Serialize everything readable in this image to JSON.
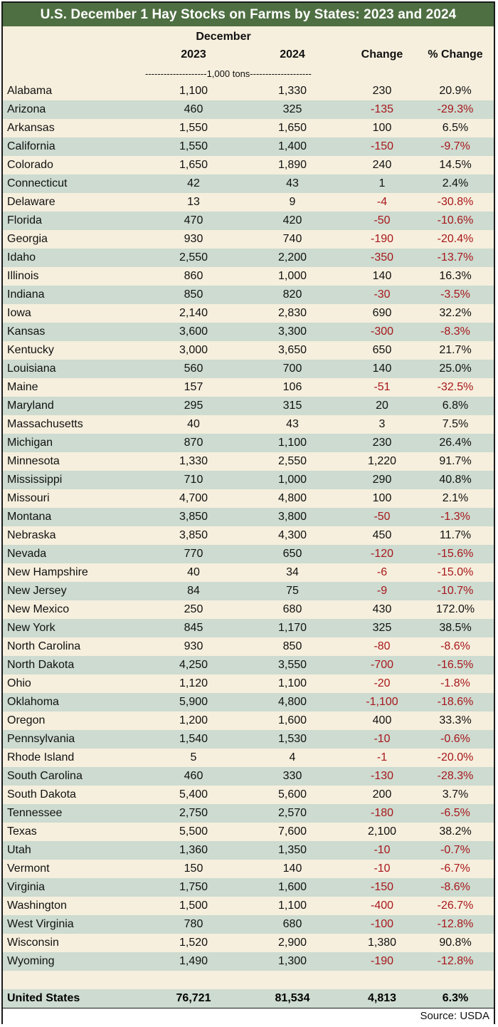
{
  "title": "U.S. December 1 Hay Stocks on Farms by States: 2023 and 2024",
  "header": {
    "group_label": "December",
    "columns": [
      "2023",
      "2024",
      "Change",
      "% Change"
    ],
    "units": "--------------------1,000 tons--------------------"
  },
  "rows": [
    {
      "state": "Alabama",
      "y2023": "1,100",
      "y2024": "1,330",
      "change": "230",
      "pct": "20.9%"
    },
    {
      "state": "Arizona",
      "y2023": "460",
      "y2024": "325",
      "change": "-135",
      "pct": "-29.3%"
    },
    {
      "state": "Arkansas",
      "y2023": "1,550",
      "y2024": "1,650",
      "change": "100",
      "pct": "6.5%"
    },
    {
      "state": "California",
      "y2023": "1,550",
      "y2024": "1,400",
      "change": "-150",
      "pct": "-9.7%"
    },
    {
      "state": "Colorado",
      "y2023": "1,650",
      "y2024": "1,890",
      "change": "240",
      "pct": "14.5%"
    },
    {
      "state": "Connecticut",
      "y2023": "42",
      "y2024": "43",
      "change": "1",
      "pct": "2.4%"
    },
    {
      "state": "Delaware",
      "y2023": "13",
      "y2024": "9",
      "change": "-4",
      "pct": "-30.8%"
    },
    {
      "state": "Florida",
      "y2023": "470",
      "y2024": "420",
      "change": "-50",
      "pct": "-10.6%"
    },
    {
      "state": "Georgia",
      "y2023": "930",
      "y2024": "740",
      "change": "-190",
      "pct": "-20.4%"
    },
    {
      "state": "Idaho",
      "y2023": "2,550",
      "y2024": "2,200",
      "change": "-350",
      "pct": "-13.7%"
    },
    {
      "state": "Illinois",
      "y2023": "860",
      "y2024": "1,000",
      "change": "140",
      "pct": "16.3%"
    },
    {
      "state": "Indiana",
      "y2023": "850",
      "y2024": "820",
      "change": "-30",
      "pct": "-3.5%"
    },
    {
      "state": "Iowa",
      "y2023": "2,140",
      "y2024": "2,830",
      "change": "690",
      "pct": "32.2%"
    },
    {
      "state": "Kansas",
      "y2023": "3,600",
      "y2024": "3,300",
      "change": "-300",
      "pct": "-8.3%"
    },
    {
      "state": "Kentucky",
      "y2023": "3,000",
      "y2024": "3,650",
      "change": "650",
      "pct": "21.7%"
    },
    {
      "state": "Louisiana",
      "y2023": "560",
      "y2024": "700",
      "change": "140",
      "pct": "25.0%"
    },
    {
      "state": "Maine",
      "y2023": "157",
      "y2024": "106",
      "change": "-51",
      "pct": "-32.5%"
    },
    {
      "state": "Maryland",
      "y2023": "295",
      "y2024": "315",
      "change": "20",
      "pct": "6.8%"
    },
    {
      "state": "Massachusetts",
      "y2023": "40",
      "y2024": "43",
      "change": "3",
      "pct": "7.5%"
    },
    {
      "state": "Michigan",
      "y2023": "870",
      "y2024": "1,100",
      "change": "230",
      "pct": "26.4%"
    },
    {
      "state": "Minnesota",
      "y2023": "1,330",
      "y2024": "2,550",
      "change": "1,220",
      "pct": "91.7%"
    },
    {
      "state": "Mississippi",
      "y2023": "710",
      "y2024": "1,000",
      "change": "290",
      "pct": "40.8%"
    },
    {
      "state": "Missouri",
      "y2023": "4,700",
      "y2024": "4,800",
      "change": "100",
      "pct": "2.1%"
    },
    {
      "state": "Montana",
      "y2023": "3,850",
      "y2024": "3,800",
      "change": "-50",
      "pct": "-1.3%"
    },
    {
      "state": "Nebraska",
      "y2023": "3,850",
      "y2024": "4,300",
      "change": "450",
      "pct": "11.7%"
    },
    {
      "state": "Nevada",
      "y2023": "770",
      "y2024": "650",
      "change": "-120",
      "pct": "-15.6%"
    },
    {
      "state": "New Hampshire",
      "y2023": "40",
      "y2024": "34",
      "change": "-6",
      "pct": "-15.0%"
    },
    {
      "state": "New Jersey",
      "y2023": "84",
      "y2024": "75",
      "change": "-9",
      "pct": "-10.7%"
    },
    {
      "state": "New Mexico",
      "y2023": "250",
      "y2024": "680",
      "change": "430",
      "pct": "172.0%"
    },
    {
      "state": "New York",
      "y2023": "845",
      "y2024": "1,170",
      "change": "325",
      "pct": "38.5%"
    },
    {
      "state": "North Carolina",
      "y2023": "930",
      "y2024": "850",
      "change": "-80",
      "pct": "-8.6%"
    },
    {
      "state": "North Dakota",
      "y2023": "4,250",
      "y2024": "3,550",
      "change": "-700",
      "pct": "-16.5%"
    },
    {
      "state": "Ohio",
      "y2023": "1,120",
      "y2024": "1,100",
      "change": "-20",
      "pct": "-1.8%"
    },
    {
      "state": "Oklahoma",
      "y2023": "5,900",
      "y2024": "4,800",
      "change": "-1,100",
      "pct": "-18.6%"
    },
    {
      "state": "Oregon",
      "y2023": "1,200",
      "y2024": "1,600",
      "change": "400",
      "pct": "33.3%"
    },
    {
      "state": "Pennsylvania",
      "y2023": "1,540",
      "y2024": "1,530",
      "change": "-10",
      "pct": "-0.6%"
    },
    {
      "state": "Rhode Island",
      "y2023": "5",
      "y2024": "4",
      "change": "-1",
      "pct": "-20.0%"
    },
    {
      "state": "South Carolina",
      "y2023": "460",
      "y2024": "330",
      "change": "-130",
      "pct": "-28.3%"
    },
    {
      "state": "South Dakota",
      "y2023": "5,400",
      "y2024": "5,600",
      "change": "200",
      "pct": "3.7%"
    },
    {
      "state": "Tennessee",
      "y2023": "2,750",
      "y2024": "2,570",
      "change": "-180",
      "pct": "-6.5%"
    },
    {
      "state": "Texas",
      "y2023": "5,500",
      "y2024": "7,600",
      "change": "2,100",
      "pct": "38.2%"
    },
    {
      "state": "Utah",
      "y2023": "1,360",
      "y2024": "1,350",
      "change": "-10",
      "pct": "-0.7%"
    },
    {
      "state": "Vermont",
      "y2023": "150",
      "y2024": "140",
      "change": "-10",
      "pct": "-6.7%"
    },
    {
      "state": "Virginia",
      "y2023": "1,750",
      "y2024": "1,600",
      "change": "-150",
      "pct": "-8.6%"
    },
    {
      "state": "Washington",
      "y2023": "1,500",
      "y2024": "1,100",
      "change": "-400",
      "pct": "-26.7%"
    },
    {
      "state": "West Virginia",
      "y2023": "780",
      "y2024": "680",
      "change": "-100",
      "pct": "-12.8%"
    },
    {
      "state": "Wisconsin",
      "y2023": "1,520",
      "y2024": "2,900",
      "change": "1,380",
      "pct": "90.8%"
    },
    {
      "state": "Wyoming",
      "y2023": "1,490",
      "y2024": "1,300",
      "change": "-190",
      "pct": "-12.8%"
    }
  ],
  "total": {
    "state": "United States",
    "y2023": "76,721",
    "y2024": "81,534",
    "change": "4,813",
    "pct": "6.3%"
  },
  "source": "Source: USDA",
  "colors": {
    "title_bg": "#4e6f42",
    "row_light": "#f6efdd",
    "row_dark": "#cddbd0",
    "negative": "#a8171c"
  }
}
